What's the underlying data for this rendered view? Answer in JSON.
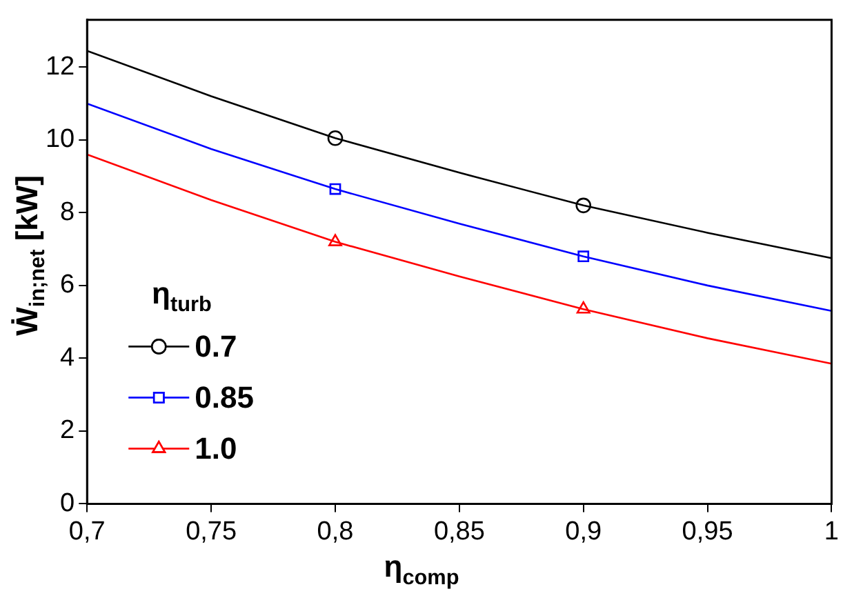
{
  "chart_data": {
    "type": "line",
    "xlabel": "η$_{comp}$",
    "ylabel": "Ẇ$_{in;net}$  [kW]",
    "legend_title": "η$_{turb}$",
    "legend": "bottom left",
    "grid": false,
    "xlim": [
      0.7,
      1.0
    ],
    "xticks": [
      {
        "value": 0.7,
        "label": "0,7"
      },
      {
        "value": 0.75,
        "label": "0,75"
      },
      {
        "value": 0.8,
        "label": "0,8"
      },
      {
        "value": 0.85,
        "label": "0,85"
      },
      {
        "value": 0.9,
        "label": "0,9"
      },
      {
        "value": 0.95,
        "label": "0,95"
      },
      {
        "value": 1.0,
        "label": "1"
      }
    ],
    "ylim": [
      0,
      13.3
    ],
    "yticks": [
      0,
      2,
      4,
      6,
      8,
      10,
      12
    ],
    "series": [
      {
        "name": "0.7",
        "type": "line",
        "marker": "none",
        "color": "#000000",
        "x": [
          0.7,
          0.75,
          0.8,
          0.85,
          0.9,
          0.95,
          1.0
        ],
        "values": [
          12.45,
          11.2,
          10.05,
          9.1,
          8.2,
          7.45,
          6.75
        ]
      },
      {
        "name": "0.85",
        "type": "line",
        "marker": "none",
        "color": "#0000ff",
        "x": [
          0.7,
          0.75,
          0.8,
          0.85,
          0.9,
          0.95,
          1.0
        ],
        "values": [
          11.0,
          9.75,
          8.65,
          7.7,
          6.8,
          6.0,
          5.3
        ]
      },
      {
        "name": "1.0",
        "type": "line",
        "marker": "none",
        "color": "#ff0000",
        "x": [
          0.7,
          0.75,
          0.8,
          0.85,
          0.9,
          0.95,
          1.0
        ],
        "values": [
          9.6,
          8.35,
          7.2,
          6.25,
          5.35,
          4.55,
          3.85
        ]
      },
      {
        "type": "scatter",
        "marker": "circle",
        "color": "#000000",
        "x": [
          0.8,
          0.9
        ],
        "values": [
          10.05,
          8.2
        ]
      },
      {
        "type": "scatter",
        "marker": "square",
        "color": "#0000ff",
        "x": [
          0.8,
          0.9
        ],
        "values": [
          8.65,
          6.8
        ]
      },
      {
        "type": "scatter",
        "marker": "triangle",
        "color": "#ff0000",
        "x": [
          0.8,
          0.9
        ],
        "values": [
          7.2,
          5.35
        ]
      }
    ]
  }
}
